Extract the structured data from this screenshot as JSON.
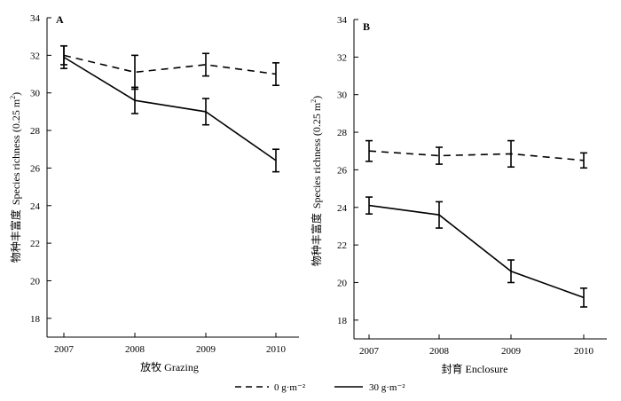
{
  "chart_data": [
    {
      "type": "line",
      "panel_label": "A",
      "x": [
        "2007",
        "2008",
        "2009",
        "2010"
      ],
      "xlabel": "放牧  Grazing",
      "ylabel_cn": "物种丰富度",
      "ylabel_en": "Species richness (0.25 m",
      "ylabel_sup": "2",
      "ylabel_close": ")",
      "ylim": [
        17,
        34
      ],
      "yticks": [
        18,
        20,
        22,
        24,
        26,
        28,
        30,
        32,
        34
      ],
      "grid": false,
      "series": [
        {
          "key": "zero",
          "style": "dashed",
          "values": [
            32.0,
            31.1,
            31.5,
            31.0
          ],
          "errors": [
            0.5,
            0.9,
            0.6,
            0.6
          ]
        },
        {
          "key": "thirty",
          "style": "solid",
          "values": [
            31.9,
            29.6,
            29.0,
            26.4
          ],
          "errors": [
            0.6,
            0.7,
            0.7,
            0.6
          ]
        }
      ]
    },
    {
      "type": "line",
      "panel_label": "B",
      "x": [
        "2007",
        "2008",
        "2009",
        "2010"
      ],
      "xlabel": "封育  Enclosure",
      "ylabel_cn": "物种丰富度",
      "ylabel_en": "Species richness (0.25 m",
      "ylabel_sup": "2",
      "ylabel_close": ")",
      "ylim": [
        17,
        34
      ],
      "yticks": [
        18,
        20,
        22,
        24,
        26,
        28,
        30,
        32,
        34
      ],
      "grid": false,
      "series": [
        {
          "key": "zero",
          "style": "dashed",
          "values": [
            27.0,
            26.75,
            26.85,
            26.5
          ],
          "errors": [
            0.55,
            0.45,
            0.7,
            0.4
          ]
        },
        {
          "key": "thirty",
          "style": "solid",
          "values": [
            24.1,
            23.6,
            20.6,
            19.2
          ],
          "errors": [
            0.45,
            0.7,
            0.6,
            0.5
          ]
        }
      ]
    }
  ],
  "legend": {
    "placement": "bottom",
    "items": [
      {
        "key": "zero",
        "label": "0 g·m⁻²",
        "style": "dashed"
      },
      {
        "key": "thirty",
        "label": "30 g·m⁻²",
        "style": "solid"
      }
    ]
  }
}
